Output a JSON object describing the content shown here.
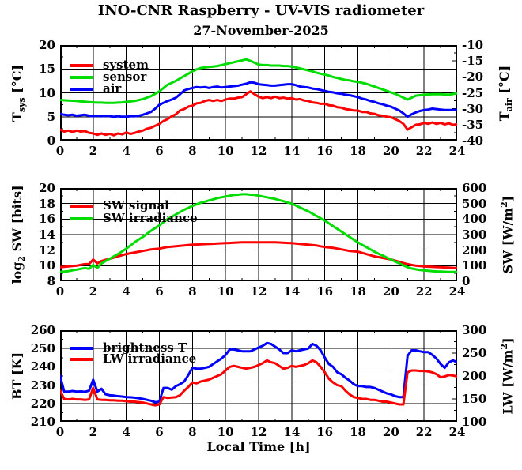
{
  "header": {
    "title": "INO-CNR Raspberry - UV-VIS radiometer",
    "subtitle": "27-November-2025"
  },
  "colors": {
    "red": "#ff0000",
    "green": "#00dd00",
    "blue": "#0000ff",
    "axis": "#000000",
    "background": "#ffffff"
  },
  "x_axis": {
    "label": "Local Time [h]",
    "min": 0,
    "max": 24,
    "major_tick_step": 2,
    "minor_tick_step": 1,
    "tick_labels": [
      "0",
      "2",
      "4",
      "6",
      "8",
      "10",
      "12",
      "14",
      "16",
      "18",
      "20",
      "22",
      "24"
    ]
  },
  "chart_data": [
    {
      "type": "line",
      "name": "temperatures",
      "grid": true,
      "y_left": {
        "title_segments": [
          {
            "t": "T"
          },
          {
            "t": "sys",
            "type": "sub"
          },
          {
            "t": " [°C]"
          }
        ],
        "min": 0,
        "max": 20,
        "tick_values": [
          0,
          5,
          10,
          15,
          20
        ],
        "tick_labels": [
          "0",
          "5",
          "10",
          "15",
          "20"
        ],
        "minor_step": 2.5
      },
      "y_right": {
        "title_segments": [
          {
            "t": "T"
          },
          {
            "t": "air",
            "type": "sub"
          },
          {
            "t": " [°C]"
          }
        ],
        "min": -40,
        "max": -10,
        "tick_values": [
          -40,
          -35,
          -30,
          -25,
          -20,
          -15,
          -10
        ],
        "tick_labels": [
          "-40",
          "-35",
          "-30",
          "-25",
          "-20",
          "-15",
          "-10"
        ],
        "minor_step": 2.5
      },
      "legend": [
        {
          "label": "system",
          "color_key": "red"
        },
        {
          "label": "sensor",
          "color_key": "green"
        },
        {
          "label": "air",
          "color_key": "blue"
        }
      ],
      "series": [
        {
          "name": "system",
          "color_key": "red",
          "axis": "left",
          "t0": 0,
          "dt": 0.25,
          "values": [
            2.3,
            1.9,
            2.1,
            1.8,
            2.1,
            1.9,
            2.0,
            1.6,
            1.5,
            1.2,
            1.5,
            1.2,
            1.4,
            1.1,
            1.5,
            1.3,
            1.7,
            1.4,
            1.6,
            1.9,
            2.1,
            2.5,
            2.7,
            3.1,
            3.5,
            4.1,
            4.5,
            5.1,
            5.5,
            6.3,
            6.6,
            7.1,
            7.3,
            7.8,
            7.9,
            8.3,
            8.5,
            8.3,
            8.5,
            8.3,
            8.6,
            8.8,
            8.8,
            9.0,
            9.1,
            9.7,
            10.3,
            9.7,
            9.2,
            8.9,
            9.1,
            8.9,
            9.2,
            8.9,
            9.0,
            8.8,
            8.9,
            8.6,
            8.7,
            8.4,
            8.3,
            8.0,
            7.9,
            7.7,
            7.7,
            7.4,
            7.3,
            7.0,
            6.9,
            6.6,
            6.5,
            6.3,
            6.3,
            6.0,
            6.0,
            5.7,
            5.6,
            5.3,
            5.2,
            5.0,
            4.9,
            4.5,
            4.1,
            3.5,
            2.3,
            2.8,
            3.3,
            3.4,
            3.7,
            3.5,
            3.8,
            3.5,
            3.7,
            3.4,
            3.6,
            3.3,
            3.4
          ]
        },
        {
          "name": "sensor",
          "color_key": "green",
          "axis": "left",
          "t0": 0,
          "dt": 0.25,
          "values": [
            8.5,
            8.45,
            8.4,
            8.35,
            8.3,
            8.2,
            8.15,
            8.05,
            8.0,
            7.95,
            7.95,
            7.9,
            7.9,
            7.9,
            7.95,
            8.0,
            8.1,
            8.2,
            8.3,
            8.5,
            8.7,
            9.0,
            9.3,
            9.8,
            10.3,
            11.0,
            11.7,
            12.1,
            12.5,
            13.0,
            13.5,
            14.0,
            14.5,
            14.9,
            15.2,
            15.3,
            15.4,
            15.5,
            15.6,
            15.8,
            16.0,
            16.2,
            16.4,
            16.6,
            16.8,
            17.0,
            16.7,
            16.3,
            15.9,
            15.8,
            15.8,
            15.7,
            15.7,
            15.7,
            15.6,
            15.6,
            15.5,
            15.3,
            15.1,
            14.9,
            14.7,
            14.5,
            14.2,
            14.0,
            13.8,
            13.6,
            13.3,
            13.1,
            12.9,
            12.7,
            12.6,
            12.4,
            12.3,
            12.1,
            11.9,
            11.6,
            11.3,
            11.0,
            10.7,
            10.4,
            10.1,
            9.8,
            9.4,
            9.0,
            8.6,
            9.0,
            9.4,
            9.5,
            9.6,
            9.65,
            9.7,
            9.7,
            9.7,
            9.65,
            9.6,
            9.75,
            9.9
          ]
        },
        {
          "name": "air",
          "color_key": "blue",
          "axis": "left",
          "t0": 0,
          "dt": 0.25,
          "values": [
            5.6,
            5.4,
            5.3,
            5.4,
            5.2,
            5.3,
            5.4,
            5.2,
            5.1,
            5.2,
            5.1,
            5.2,
            5.1,
            5.0,
            5.1,
            5.0,
            5.0,
            5.1,
            5.1,
            5.2,
            5.4,
            5.7,
            6.0,
            6.7,
            7.5,
            7.9,
            8.3,
            8.6,
            9.0,
            9.7,
            10.5,
            10.8,
            11.0,
            11.2,
            11.1,
            11.2,
            11.0,
            11.2,
            11.3,
            11.1,
            11.2,
            11.3,
            11.4,
            11.5,
            11.7,
            11.9,
            12.2,
            12.1,
            11.8,
            11.7,
            11.6,
            11.5,
            11.5,
            11.6,
            11.7,
            11.8,
            11.8,
            11.6,
            11.3,
            11.2,
            11.1,
            10.9,
            10.8,
            10.6,
            10.4,
            10.2,
            10.1,
            9.9,
            9.8,
            9.6,
            9.5,
            9.3,
            9.1,
            8.8,
            8.6,
            8.3,
            8.1,
            7.8,
            7.6,
            7.3,
            7.1,
            6.7,
            6.3,
            5.7,
            5.0,
            5.5,
            5.9,
            6.2,
            6.4,
            6.5,
            6.7,
            6.6,
            6.5,
            6.4,
            6.4,
            6.4,
            6.5
          ]
        }
      ]
    },
    {
      "type": "line",
      "name": "shortwave",
      "grid": true,
      "y_left": {
        "title_segments": [
          {
            "t": "log"
          },
          {
            "t": "2",
            "type": "sub"
          },
          {
            "t": " SW [bits]"
          }
        ],
        "min": 8,
        "max": 20,
        "tick_values": [
          8,
          10,
          12,
          14,
          16,
          18,
          20
        ],
        "tick_labels": [
          "8",
          "10",
          "12",
          "14",
          "16",
          "18",
          "20"
        ],
        "minor_step": 1
      },
      "y_right": {
        "title_segments": [
          {
            "t": "SW [W/m"
          },
          {
            "t": "2",
            "type": "sup"
          },
          {
            "t": "]"
          }
        ],
        "min": 0,
        "max": 600,
        "tick_values": [
          0,
          100,
          200,
          300,
          400,
          500,
          600
        ],
        "tick_labels": [
          "0",
          "100",
          "200",
          "300",
          "400",
          "500",
          "600"
        ],
        "minor_step": 50
      },
      "legend": [
        {
          "label": "SW signal",
          "color_key": "red"
        },
        {
          "label": "SW irradiance",
          "color_key": "green"
        }
      ],
      "series": [
        {
          "name": "SW signal",
          "color_key": "red",
          "axis": "left",
          "t0": 0,
          "dt": 0.25,
          "values": [
            9.8,
            9.85,
            9.9,
            9.95,
            10.0,
            10.1,
            10.2,
            10.2,
            10.8,
            10.3,
            10.6,
            10.75,
            10.9,
            11.05,
            11.2,
            11.35,
            11.5,
            11.6,
            11.7,
            11.8,
            11.9,
            12.0,
            12.1,
            12.15,
            12.2,
            12.3,
            12.4,
            12.45,
            12.5,
            12.55,
            12.6,
            12.65,
            12.7,
            12.72,
            12.75,
            12.78,
            12.8,
            12.82,
            12.85,
            12.88,
            12.9,
            12.92,
            12.95,
            12.98,
            13.0,
            13.0,
            13.0,
            13.0,
            13.0,
            13.0,
            13.0,
            13.0,
            13.0,
            12.98,
            12.95,
            12.92,
            12.9,
            12.85,
            12.8,
            12.75,
            12.7,
            12.65,
            12.6,
            12.5,
            12.4,
            12.35,
            12.3,
            12.2,
            12.1,
            12.0,
            11.9,
            11.85,
            11.8,
            11.65,
            11.5,
            11.35,
            11.2,
            11.1,
            11.0,
            10.9,
            10.8,
            10.65,
            10.5,
            10.35,
            10.2,
            10.1,
            10.0,
            9.95,
            9.9,
            9.87,
            9.85,
            9.82,
            9.8,
            9.77,
            9.75,
            9.72,
            9.7
          ]
        },
        {
          "name": "SW irradiance",
          "color_key": "green",
          "axis": "right",
          "t0": 0,
          "dt": 0.25,
          "values": [
            60,
            62,
            65,
            70,
            75,
            80,
            85,
            80,
            105,
            85,
            115,
            130,
            145,
            160,
            175,
            192,
            210,
            230,
            250,
            268,
            285,
            305,
            325,
            342,
            360,
            380,
            400,
            415,
            430,
            445,
            460,
            472,
            485,
            495,
            505,
            512,
            520,
            527,
            535,
            540,
            545,
            550,
            555,
            557,
            560,
            560,
            557,
            555,
            550,
            545,
            540,
            535,
            530,
            522,
            515,
            507,
            500,
            487,
            475,
            462,
            450,
            435,
            420,
            405,
            390,
            372,
            355,
            337,
            320,
            302,
            285,
            267,
            250,
            235,
            220,
            205,
            190,
            177,
            165,
            152,
            140,
            127,
            115,
            102,
            90,
            82,
            77,
            72,
            70,
            67,
            65,
            63,
            62,
            61,
            60,
            60,
            60
          ]
        }
      ]
    },
    {
      "type": "line",
      "name": "longwave",
      "grid": true,
      "y_left": {
        "title_segments": [
          {
            "t": "BT [K]"
          }
        ],
        "min": 210,
        "max": 260,
        "tick_values": [
          210,
          220,
          230,
          240,
          250,
          260
        ],
        "tick_labels": [
          "210",
          "220",
          "230",
          "240",
          "250",
          "260"
        ],
        "minor_step": 5
      },
      "y_right": {
        "title_segments": [
          {
            "t": "LW [W/m"
          },
          {
            "t": "2",
            "type": "sup"
          },
          {
            "t": "]"
          }
        ],
        "min": 100,
        "max": 300,
        "tick_values": [
          100,
          150,
          200,
          250,
          300
        ],
        "tick_labels": [
          "100",
          "150",
          "200",
          "250",
          "300"
        ],
        "minor_step": 25
      },
      "legend": [
        {
          "label": "brightness T",
          "color_key": "blue"
        },
        {
          "label": "LW irradiance",
          "color_key": "red"
        }
      ],
      "series": [
        {
          "name": "brightness T",
          "color_key": "blue",
          "axis": "left",
          "t0": 0,
          "dt": 0.25,
          "values": [
            235,
            226.5,
            226.5,
            226.8,
            226.5,
            226.6,
            226.4,
            227,
            233,
            226.5,
            228,
            225,
            224.5,
            224.3,
            224,
            223.8,
            223.5,
            223.4,
            223.2,
            222.9,
            222.5,
            222,
            221.5,
            220.7,
            221,
            228.5,
            228.5,
            227.5,
            229.5,
            230.5,
            232,
            235.5,
            239.5,
            239,
            239,
            239.5,
            240,
            241.5,
            243,
            244.5,
            246.5,
            249.5,
            249.5,
            249,
            248.5,
            248.5,
            248.5,
            249.5,
            250.5,
            251.5,
            253,
            252.5,
            251,
            249.5,
            247.5,
            247.5,
            249,
            248.5,
            249,
            249.5,
            250,
            252.5,
            251.5,
            249,
            245,
            241.5,
            240,
            237,
            236,
            234,
            232.5,
            230.5,
            229.5,
            229.5,
            229,
            229,
            228.5,
            227.5,
            226.5,
            225.5,
            225,
            224,
            223.5,
            223.5,
            246,
            249,
            249,
            248.5,
            248,
            248,
            246.5,
            244.5,
            241.5,
            239.5,
            242.5,
            243.5,
            242.5
          ]
        },
        {
          "name": "LW irradiance",
          "color_key": "red",
          "axis": "right",
          "t0": 0,
          "dt": 0.25,
          "values": [
            168,
            150,
            149,
            150,
            149,
            149,
            148,
            149,
            174,
            149,
            148,
            148,
            147,
            147,
            146,
            146,
            145,
            144,
            144,
            143,
            142,
            140,
            138,
            136,
            138,
            154,
            152,
            153,
            154,
            158,
            168,
            176,
            186,
            184,
            188,
            190,
            192,
            196,
            200,
            204,
            212,
            220,
            222,
            220,
            218,
            216,
            218,
            220,
            224,
            228,
            234,
            230,
            228,
            222,
            216,
            218,
            222,
            220,
            222,
            224,
            228,
            234,
            230,
            220,
            208,
            194,
            186,
            180,
            178,
            168,
            160,
            154,
            152,
            150,
            150,
            148,
            148,
            146,
            144,
            144,
            142,
            140,
            138,
            138,
            208,
            212,
            212,
            211,
            211,
            210,
            208,
            204,
            197,
            199,
            202,
            201,
            199
          ]
        }
      ]
    }
  ]
}
